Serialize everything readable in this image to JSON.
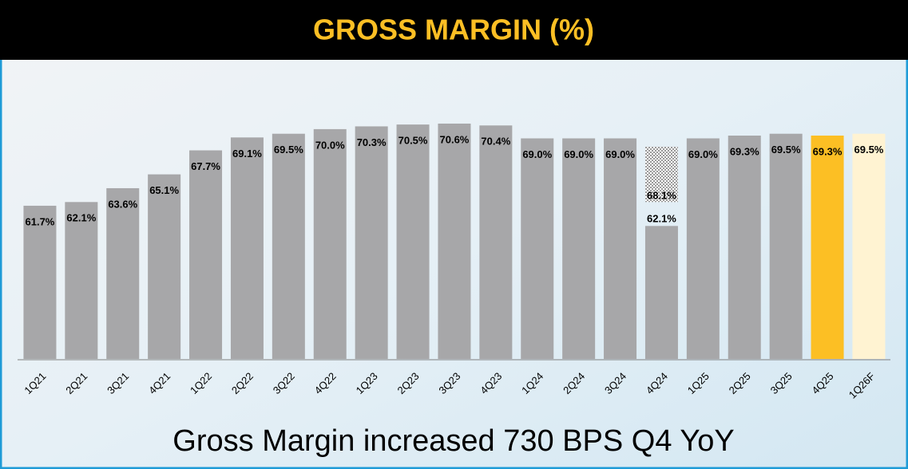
{
  "chart_data": {
    "type": "bar",
    "title": "GROSS MARGIN (%)",
    "subtitle": "Gross Margin increased 730 BPS Q4 YoY",
    "categories": [
      "1Q21",
      "2Q21",
      "3Q21",
      "4Q21",
      "1Q22",
      "2Q22",
      "3Q22",
      "4Q22",
      "1Q23",
      "2Q23",
      "3Q23",
      "4Q23",
      "1Q24",
      "2Q24",
      "3Q24",
      "4Q24",
      "1Q25",
      "2Q25",
      "3Q25",
      "4Q25",
      "1Q26F"
    ],
    "values": [
      61.7,
      62.1,
      63.6,
      65.1,
      67.7,
      69.1,
      69.5,
      70.0,
      70.3,
      70.5,
      70.6,
      70.4,
      69.0,
      69.0,
      69.0,
      62.1,
      69.0,
      69.3,
      69.5,
      69.3,
      69.5
    ],
    "value_labels": [
      "61.7%",
      "62.1%",
      "63.6%",
      "65.1%",
      "67.7%",
      "69.1%",
      "69.5%",
      "70.0%",
      "70.3%",
      "70.5%",
      "70.6%",
      "70.4%",
      "69.0%",
      "69.0%",
      "69.0%",
      "62.1%",
      "69.0%",
      "69.3%",
      "69.5%",
      "69.3%",
      "69.5%"
    ],
    "overlay_values": [
      null,
      null,
      null,
      null,
      null,
      null,
      null,
      null,
      null,
      null,
      null,
      null,
      null,
      null,
      null,
      68.1,
      null,
      null,
      null,
      null,
      null
    ],
    "overlay_value_labels": [
      null,
      null,
      null,
      null,
      null,
      null,
      null,
      null,
      null,
      null,
      null,
      null,
      null,
      null,
      null,
      "68.1%",
      null,
      null,
      null,
      null,
      null
    ],
    "colors": [
      "#a7a7a9",
      "#a7a7a9",
      "#a7a7a9",
      "#a7a7a9",
      "#a7a7a9",
      "#a7a7a9",
      "#a7a7a9",
      "#a7a7a9",
      "#a7a7a9",
      "#a7a7a9",
      "#a7a7a9",
      "#a7a7a9",
      "#a7a7a9",
      "#a7a7a9",
      "#a7a7a9",
      "#a7a7a9",
      "#a7a7a9",
      "#a7a7a9",
      "#a7a7a9",
      "#fcbf24",
      "#fff3d2"
    ],
    "ylim": [
      45.1,
      72
    ]
  }
}
